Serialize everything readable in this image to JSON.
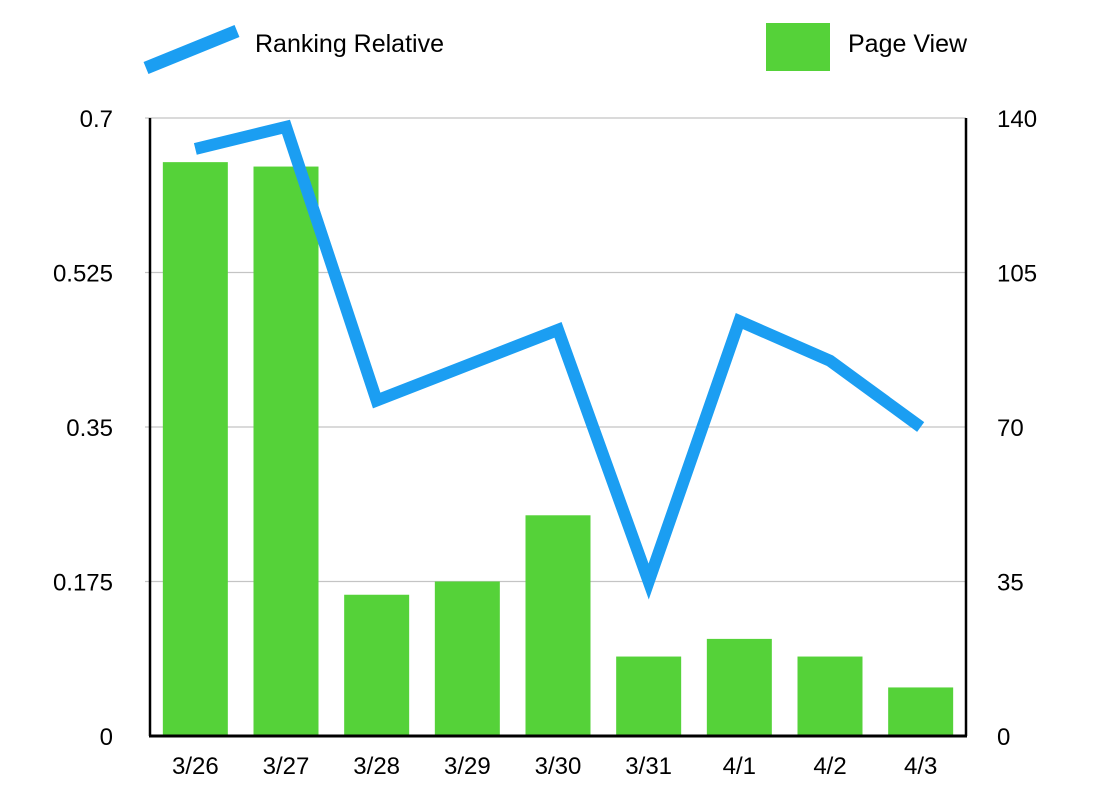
{
  "legend": {
    "line_label": "Ranking Relative",
    "bar_label": "Page View"
  },
  "colors": {
    "bar": "#55d239",
    "line": "#1b9ef2",
    "grid": "#c4c4c4",
    "axis": "#000000",
    "text": "#000000",
    "background": "#ffffff"
  },
  "chart_data": {
    "type": "combo-bar-line",
    "title": "",
    "categories": [
      "3/26",
      "3/27",
      "3/28",
      "3/29",
      "3/30",
      "3/31",
      "4/1",
      "4/2",
      "4/3"
    ],
    "series": [
      {
        "name": "Page View",
        "type": "bar",
        "axis": "right",
        "color": "#55d239",
        "values": [
          130,
          129,
          32,
          35,
          50,
          18,
          22,
          18,
          11
        ]
      },
      {
        "name": "Ranking Relative",
        "type": "line",
        "axis": "left",
        "color": "#1b9ef2",
        "values": [
          0.665,
          0.69,
          0.38,
          0.42,
          0.46,
          0.175,
          0.47,
          0.425,
          0.35
        ]
      }
    ],
    "left_axis": {
      "range": [
        0,
        0.7
      ],
      "ticks": [
        0,
        0.175,
        0.35,
        0.525,
        0.7
      ],
      "tick_labels": [
        "0",
        "0.175",
        "0.35",
        "0.525",
        "0.7"
      ]
    },
    "right_axis": {
      "range": [
        0,
        140
      ],
      "ticks": [
        0,
        35,
        70,
        105,
        140
      ],
      "tick_labels": [
        "0",
        "35",
        "70",
        "105",
        "140"
      ]
    },
    "grid": true,
    "legend_position": "top"
  }
}
